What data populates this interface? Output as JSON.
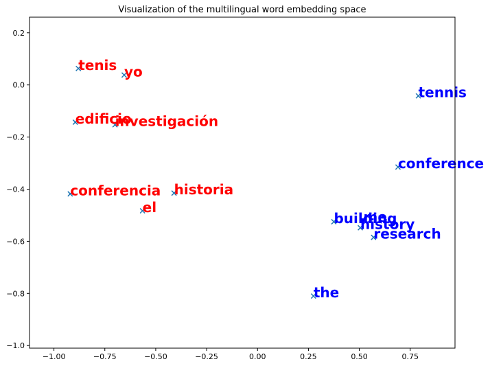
{
  "chart_data": {
    "type": "scatter",
    "title": "Visualization of the multilingual word embedding space",
    "xlabel": "",
    "ylabel": "",
    "xlim": [
      -1.12,
      0.97
    ],
    "ylim": [
      -1.01,
      0.26
    ],
    "x_ticks": [
      -1.0,
      -0.75,
      -0.5,
      -0.25,
      0.0,
      0.25,
      0.5,
      0.75
    ],
    "x_tick_labels": [
      "−1.00",
      "−0.75",
      "−0.50",
      "−0.25",
      "0.00",
      "0.25",
      "0.50",
      "0.75"
    ],
    "y_ticks": [
      0.2,
      0.0,
      -0.2,
      -0.4,
      -0.6,
      -0.8,
      -1.0
    ],
    "y_tick_labels": [
      "0.2",
      "0.0",
      "−0.2",
      "−0.4",
      "−0.6",
      "−0.8",
      "−1.0"
    ],
    "grid": false,
    "marker": "x",
    "marker_color": "#1f77b4",
    "label_colors": {
      "spanish": "#ff0000",
      "english": "#0000ff"
    },
    "points": [
      {
        "label": "tenis",
        "x": -0.88,
        "y": 0.063,
        "group": "spanish"
      },
      {
        "label": "yo",
        "x": -0.655,
        "y": 0.038,
        "group": "spanish"
      },
      {
        "label": "edificio",
        "x": -0.895,
        "y": -0.143,
        "group": "spanish"
      },
      {
        "label": "investigación",
        "x": -0.7,
        "y": -0.153,
        "group": "spanish"
      },
      {
        "label": "conferencia",
        "x": -0.92,
        "y": -0.418,
        "group": "spanish"
      },
      {
        "label": "historia",
        "x": -0.41,
        "y": -0.415,
        "group": "spanish"
      },
      {
        "label": "el",
        "x": -0.565,
        "y": -0.483,
        "group": "spanish"
      },
      {
        "label": "tennis",
        "x": 0.79,
        "y": -0.042,
        "group": "english"
      },
      {
        "label": "conference",
        "x": 0.69,
        "y": -0.315,
        "group": "english"
      },
      {
        "label": "building",
        "x": 0.375,
        "y": -0.525,
        "group": "english"
      },
      {
        "label": "me",
        "x": 0.52,
        "y": -0.52,
        "group": "english"
      },
      {
        "label": "history",
        "x": 0.505,
        "y": -0.548,
        "group": "english"
      },
      {
        "label": "research",
        "x": 0.57,
        "y": -0.585,
        "group": "english"
      },
      {
        "label": "the",
        "x": 0.275,
        "y": -0.81,
        "group": "english"
      }
    ]
  }
}
